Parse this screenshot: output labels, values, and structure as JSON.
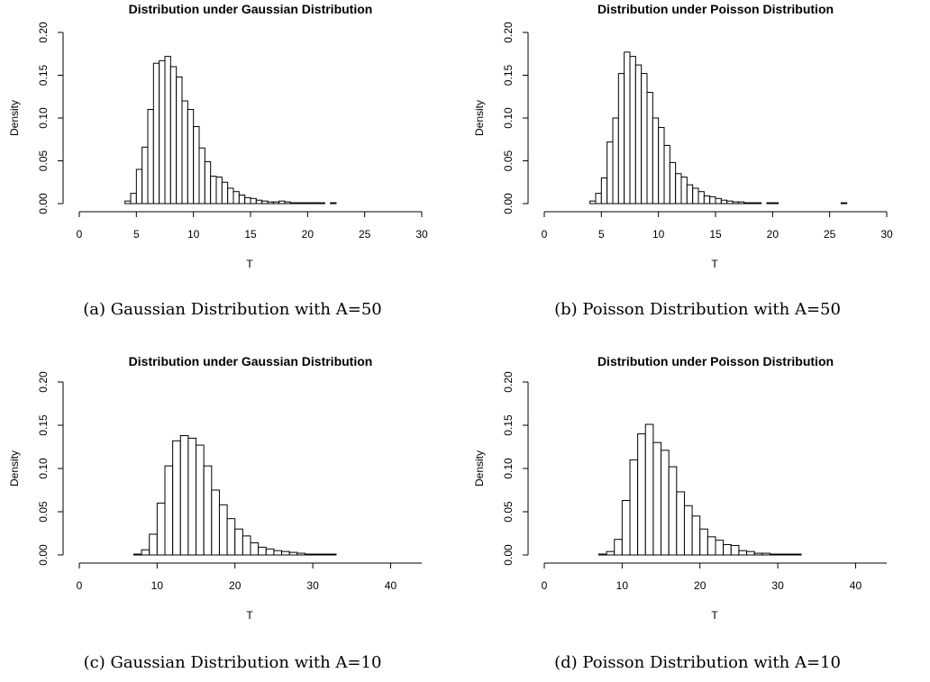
{
  "chart_data": [
    {
      "type": "bar",
      "title": "Distribution under Gaussian Distribution",
      "xlabel": "T",
      "ylabel": "Density",
      "caption": "(a) Gaussian Distribution with A=50",
      "xlim": [
        0,
        30
      ],
      "ylim": [
        0,
        0.2
      ],
      "xticks": [
        0,
        5,
        10,
        15,
        20,
        25,
        30
      ],
      "yticks": [
        "0.00",
        "0.05",
        "0.10",
        "0.15",
        "0.20"
      ],
      "bin_width": 0.5,
      "bin_start": 0,
      "values": [
        0,
        0,
        0,
        0,
        0,
        0,
        0,
        0,
        0.003,
        0.012,
        0.04,
        0.066,
        0.11,
        0.164,
        0.167,
        0.172,
        0.16,
        0.148,
        0.12,
        0.11,
        0.09,
        0.065,
        0.049,
        0.032,
        0.031,
        0.025,
        0.018,
        0.014,
        0.01,
        0.007,
        0.006,
        0.004,
        0.003,
        0.002,
        0.002,
        0.003,
        0.002,
        0.001,
        0.001,
        0.001,
        0.001,
        0.001,
        0.001,
        0,
        0.001,
        0,
        0,
        0,
        0,
        0,
        0,
        0,
        0,
        0,
        0,
        0,
        0,
        0,
        0,
        0
      ]
    },
    {
      "type": "bar",
      "title": "Distribution under Poisson Distribution",
      "xlabel": "T",
      "ylabel": "Density",
      "caption": "(b) Poisson Distribution with A=50",
      "xlim": [
        0,
        30
      ],
      "ylim": [
        0,
        0.2
      ],
      "xticks": [
        0,
        5,
        10,
        15,
        20,
        25,
        30
      ],
      "yticks": [
        "0.00",
        "0.05",
        "0.10",
        "0.15",
        "0.20"
      ],
      "bin_width": 0.5,
      "bin_start": 0,
      "values": [
        0,
        0,
        0,
        0,
        0,
        0,
        0,
        0,
        0.003,
        0.012,
        0.03,
        0.072,
        0.1,
        0.152,
        0.177,
        0.172,
        0.162,
        0.152,
        0.13,
        0.1,
        0.089,
        0.068,
        0.048,
        0.035,
        0.031,
        0.022,
        0.018,
        0.014,
        0.009,
        0.008,
        0.006,
        0.004,
        0.003,
        0.002,
        0.002,
        0.001,
        0.001,
        0.001,
        0,
        0.001,
        0.001,
        0,
        0,
        0,
        0,
        0,
        0,
        0,
        0,
        0,
        0,
        0,
        0.001,
        0,
        0,
        0,
        0,
        0,
        0,
        0
      ]
    },
    {
      "type": "bar",
      "title": "Distribution under Gaussian Distribution",
      "xlabel": "T",
      "ylabel": "Density",
      "caption": "(c) Gaussian Distribution with A=10",
      "xlim": [
        0,
        44
      ],
      "ylim": [
        0,
        0.2
      ],
      "xticks": [
        0,
        10,
        20,
        30,
        40
      ],
      "yticks": [
        "0.00",
        "0.05",
        "0.10",
        "0.15",
        "0.20"
      ],
      "bin_width": 1,
      "bin_start": 0,
      "values": [
        0,
        0,
        0,
        0,
        0,
        0,
        0,
        0.001,
        0.006,
        0.024,
        0.06,
        0.103,
        0.132,
        0.138,
        0.135,
        0.127,
        0.103,
        0.075,
        0.058,
        0.042,
        0.03,
        0.022,
        0.014,
        0.009,
        0.007,
        0.005,
        0.004,
        0.003,
        0.002,
        0.001,
        0.001,
        0.001,
        0.001,
        0,
        0,
        0,
        0,
        0,
        0,
        0,
        0,
        0,
        0,
        0
      ]
    },
    {
      "type": "bar",
      "title": "Distribution under Poisson Distribution",
      "xlabel": "T",
      "ylabel": "Density",
      "caption": "(d) Poisson Distribution with A=10",
      "xlim": [
        0,
        44
      ],
      "ylim": [
        0,
        0.2
      ],
      "xticks": [
        0,
        10,
        20,
        30,
        40
      ],
      "yticks": [
        "0.00",
        "0.05",
        "0.10",
        "0.15",
        "0.20"
      ],
      "bin_width": 1,
      "bin_start": 0,
      "values": [
        0,
        0,
        0,
        0,
        0,
        0,
        0,
        0.001,
        0.004,
        0.018,
        0.063,
        0.11,
        0.14,
        0.151,
        0.13,
        0.121,
        0.102,
        0.073,
        0.057,
        0.045,
        0.03,
        0.021,
        0.017,
        0.012,
        0.011,
        0.005,
        0.004,
        0.002,
        0.002,
        0.001,
        0.001,
        0.001,
        0.001,
        0,
        0,
        0,
        0,
        0,
        0,
        0,
        0,
        0,
        0,
        0
      ]
    }
  ]
}
